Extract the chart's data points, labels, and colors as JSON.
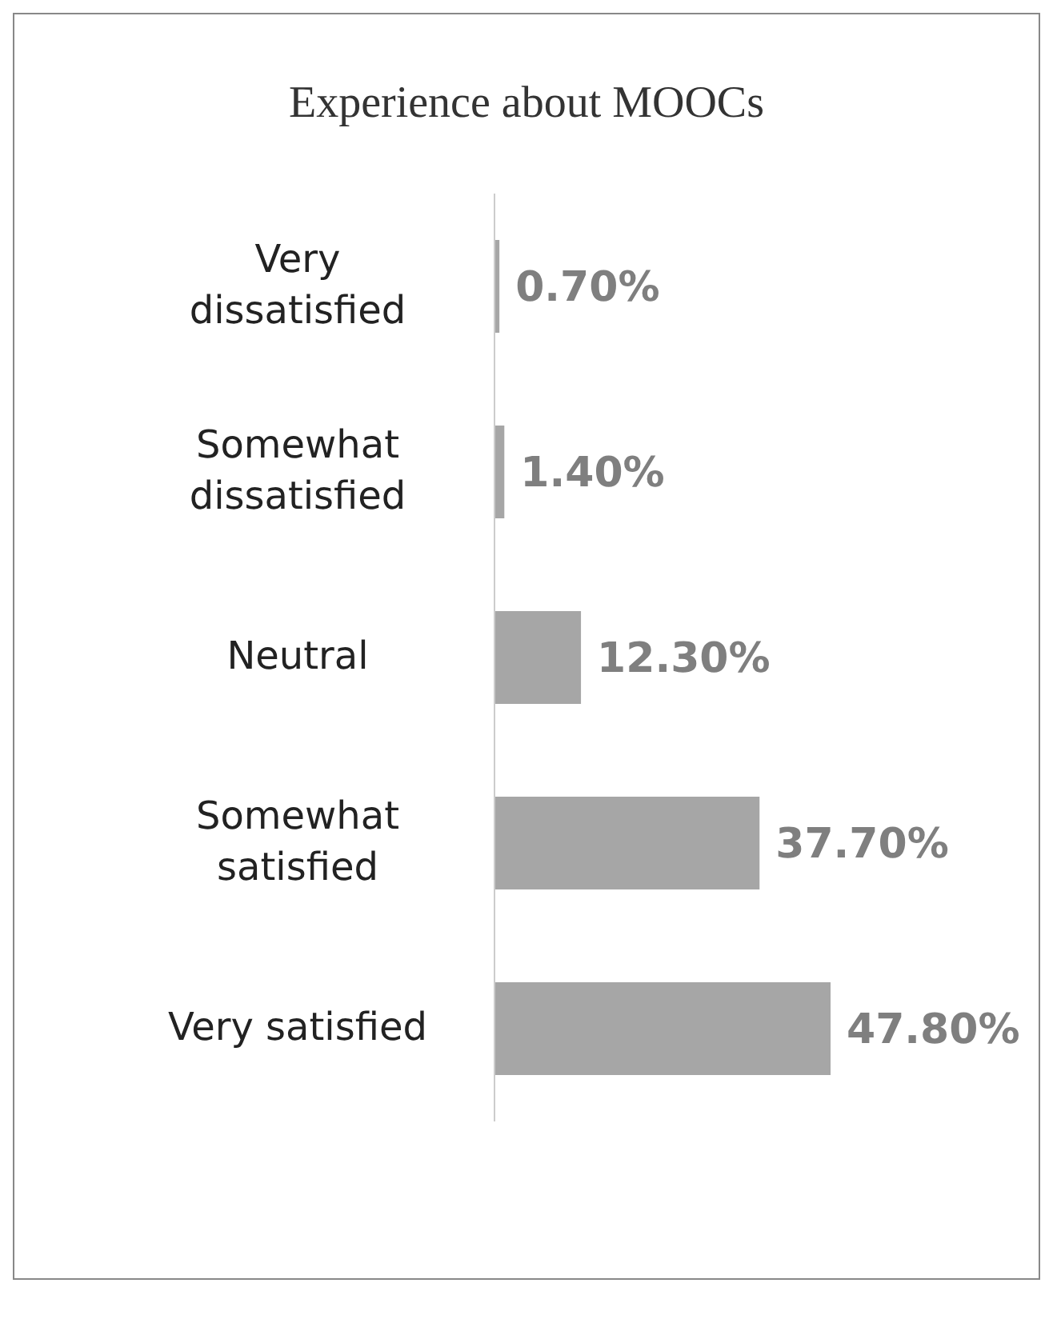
{
  "chart_data": {
    "type": "bar",
    "orientation": "horizontal",
    "title": "Experience about MOOCs",
    "categories": [
      "Very dissatisfied",
      "Somewhat dissatisfied",
      "Neutral",
      "Somewhat satisfied",
      "Very satisfied"
    ],
    "values": [
      0.7,
      1.4,
      12.3,
      37.7,
      47.8
    ],
    "color": "#a6a6a6",
    "value_labels": [
      "0.70%",
      "1.40%",
      "12.30%",
      "37.70%",
      "47.80%"
    ],
    "grid": false,
    "legend": false
  }
}
